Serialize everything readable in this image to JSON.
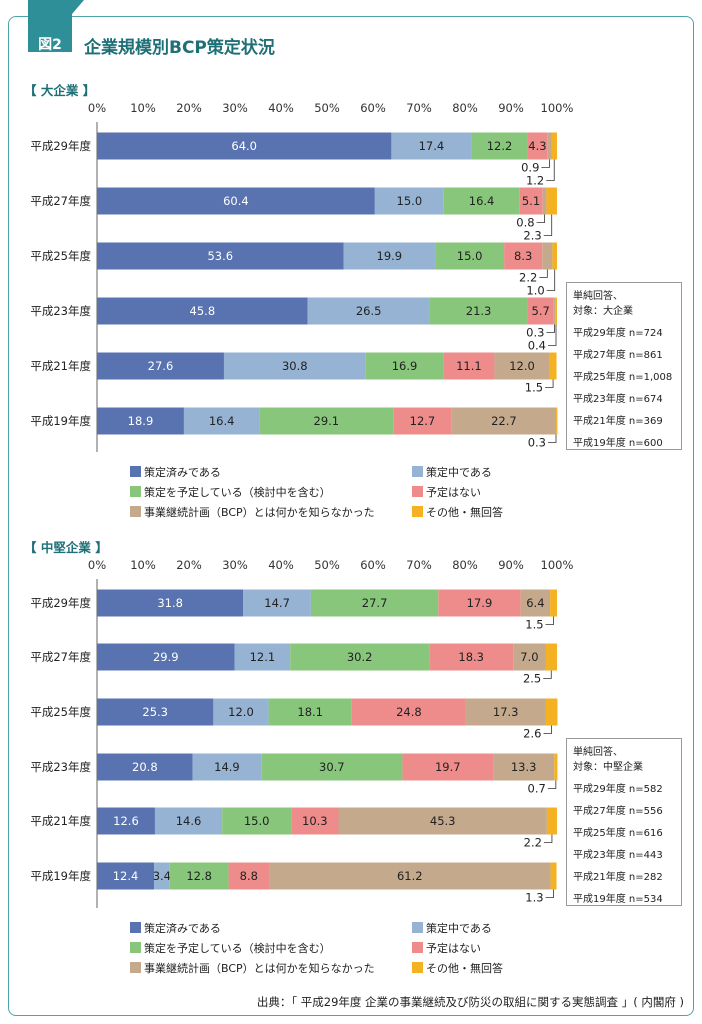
{
  "figure": {
    "label": "図2",
    "title": "企業規模別BCP策定状況"
  },
  "source": "出典：「 平成29年度 企業の事業継続及び防災の取組に関する実態調査 」( 内閣府 )",
  "colors": {
    "frame": "#4ea4ab",
    "accent": "#2e8f98",
    "s1": "#5873b0",
    "s2": "#96b3d4",
    "s3": "#88c77b",
    "s4": "#ee8c8c",
    "s5": "#c4a98c",
    "s6": "#f4b223"
  },
  "chart_data": [
    {
      "type": "bar",
      "orientation": "horizontal",
      "stacked": true,
      "section_label": "【 大企業 】",
      "xlim": [
        0,
        100
      ],
      "x_ticks": [
        "0%",
        "10%",
        "20%",
        "30%",
        "40%",
        "50%",
        "60%",
        "70%",
        "80%",
        "90%",
        "100%"
      ],
      "categories": [
        "平成29年度",
        "平成27年度",
        "平成25年度",
        "平成23年度",
        "平成21年度",
        "平成19年度"
      ],
      "series": [
        {
          "name": "策定済みである",
          "values": [
            64.0,
            60.4,
            53.6,
            45.8,
            27.6,
            18.9
          ]
        },
        {
          "name": "策定中である",
          "values": [
            17.4,
            15.0,
            19.9,
            26.5,
            30.8,
            16.4
          ]
        },
        {
          "name": "策定を予定している（検討中を含む）",
          "values": [
            12.2,
            16.4,
            15.0,
            21.3,
            16.9,
            29.1
          ]
        },
        {
          "name": "予定はない",
          "values": [
            4.3,
            5.1,
            8.3,
            5.7,
            11.1,
            12.7
          ]
        },
        {
          "name": "事業継続計画（BCP）とは何かを知らなかった",
          "values": [
            0.9,
            0.8,
            2.2,
            0.3,
            12.0,
            22.7
          ]
        },
        {
          "name": "その他・無回答",
          "values": [
            1.2,
            2.3,
            1.0,
            0.4,
            1.5,
            0.3
          ]
        }
      ],
      "value_labels": [
        [
          "64.0",
          "17.4",
          "12.2",
          "4.3",
          "0.9",
          "1.2"
        ],
        [
          "60.4",
          "15.0",
          "16.4",
          "5.1",
          "0.8",
          "2.3"
        ],
        [
          "53.6",
          "19.9",
          "15.0",
          "8.3",
          "2.2",
          "1.0"
        ],
        [
          "45.8",
          "26.5",
          "21.3",
          "5.7",
          "0.3",
          "0.4"
        ],
        [
          "27.6",
          "30.8",
          "16.9",
          "11.1",
          "12.0",
          "1.5"
        ],
        [
          "18.9",
          "16.4",
          "29.1",
          "12.7",
          "22.7",
          "0.3"
        ]
      ],
      "note": {
        "lines": [
          "単純回答、",
          "対象：大企業"
        ],
        "n": [
          "平成29年度 n=724",
          "平成27年度 n=861",
          "平成25年度 n=1,008",
          "平成23年度 n=674",
          "平成21年度 n=369",
          "平成19年度 n=600"
        ]
      }
    },
    {
      "type": "bar",
      "orientation": "horizontal",
      "stacked": true,
      "section_label": "【 中堅企業 】",
      "xlim": [
        0,
        100
      ],
      "x_ticks": [
        "0%",
        "10%",
        "20%",
        "30%",
        "40%",
        "50%",
        "60%",
        "70%",
        "80%",
        "90%",
        "100%"
      ],
      "categories": [
        "平成29年度",
        "平成27年度",
        "平成25年度",
        "平成23年度",
        "平成21年度",
        "平成19年度"
      ],
      "series": [
        {
          "name": "策定済みである",
          "values": [
            31.8,
            29.9,
            25.3,
            20.8,
            12.6,
            12.4
          ]
        },
        {
          "name": "策定中である",
          "values": [
            14.7,
            12.1,
            12.0,
            14.9,
            14.6,
            3.4
          ]
        },
        {
          "name": "策定を予定している（検討中を含む）",
          "values": [
            27.7,
            30.2,
            18.1,
            30.7,
            15.0,
            12.8
          ]
        },
        {
          "name": "予定はない",
          "values": [
            17.9,
            18.3,
            24.8,
            19.7,
            10.3,
            8.8
          ]
        },
        {
          "name": "事業継続計画（BCP）とは何かを知らなかった",
          "values": [
            6.4,
            7.0,
            17.3,
            13.3,
            45.3,
            61.2
          ]
        },
        {
          "name": "その他・無回答",
          "values": [
            1.5,
            2.5,
            2.6,
            0.7,
            2.2,
            1.3
          ]
        }
      ],
      "value_labels": [
        [
          "31.8",
          "14.7",
          "27.7",
          "17.9",
          "6.4",
          "1.5"
        ],
        [
          "29.9",
          "12.1",
          "30.2",
          "18.3",
          "7.0",
          "2.5"
        ],
        [
          "25.3",
          "12.0",
          "18.1",
          "24.8",
          "17.3",
          "2.6"
        ],
        [
          "20.8",
          "14.9",
          "30.7",
          "19.7",
          "13.3",
          "0.7"
        ],
        [
          "12.6",
          "14.6",
          "15.0",
          "10.3",
          "45.3",
          "2.2"
        ],
        [
          "12.4",
          "3.4",
          "12.8",
          "8.8",
          "61.2",
          "1.3"
        ]
      ],
      "note": {
        "lines": [
          "単純回答、",
          "対象：中堅企業"
        ],
        "n": [
          "平成29年度 n=582",
          "平成27年度 n=556",
          "平成25年度 n=616",
          "平成23年度 n=443",
          "平成21年度 n=282",
          "平成19年度 n=534"
        ]
      }
    }
  ],
  "legend": [
    {
      "label": "策定済みである",
      "color": "#5873b0"
    },
    {
      "label": "策定中である",
      "color": "#96b3d4"
    },
    {
      "label": "策定を予定している（検討中を含む）",
      "color": "#88c77b"
    },
    {
      "label": "予定はない",
      "color": "#ee8c8c"
    },
    {
      "label": "事業継続計画（BCP）とは何かを知らなかった",
      "color": "#c4a98c"
    },
    {
      "label": "その他・無回答",
      "color": "#f4b223"
    }
  ]
}
